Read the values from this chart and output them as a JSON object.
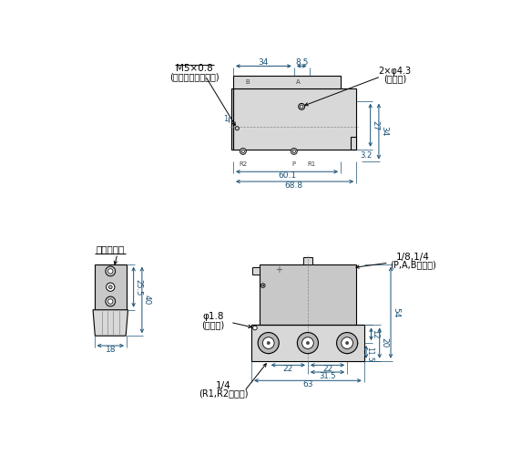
{
  "bg_color": "#ffffff",
  "line_color": "#000000",
  "dim_color": "#1a5276",
  "fill_light": "#d8d8d8",
  "fill_mid": "#c8c8c8",
  "fill_dark": "#b8b8b8",
  "labels": {
    "M5x08": "M5×0.8",
    "pilot": "(パイロットポート)",
    "dim2x43": "2×φ4.3",
    "torifu": "(取付用)",
    "manual": "マニュアル",
    "port_label": "1/8,1/4",
    "port_sub": "(P,A,Bポート)",
    "phi18": "φ1.8",
    "breath": "(呼吸穴)",
    "port14": "1/4",
    "port_r": "(R1,R2ポート)",
    "R2": "R2",
    "P": "P",
    "R1": "R1",
    "B": "B",
    "A": "A"
  },
  "dims": {
    "34": "34",
    "8.5": "8.5",
    "27": "27",
    "34b": "34",
    "60.1": "60.1",
    "3.2": "3.2",
    "68.8": "68.8",
    "1": "1",
    "40": "40",
    "25.5": "25.5",
    "18": "18",
    "54": "54",
    "20": "20",
    "12": "12",
    "11.5": "11.5",
    "22a": "22",
    "22b": "22",
    "31.5": "31.5",
    "63": "63"
  }
}
